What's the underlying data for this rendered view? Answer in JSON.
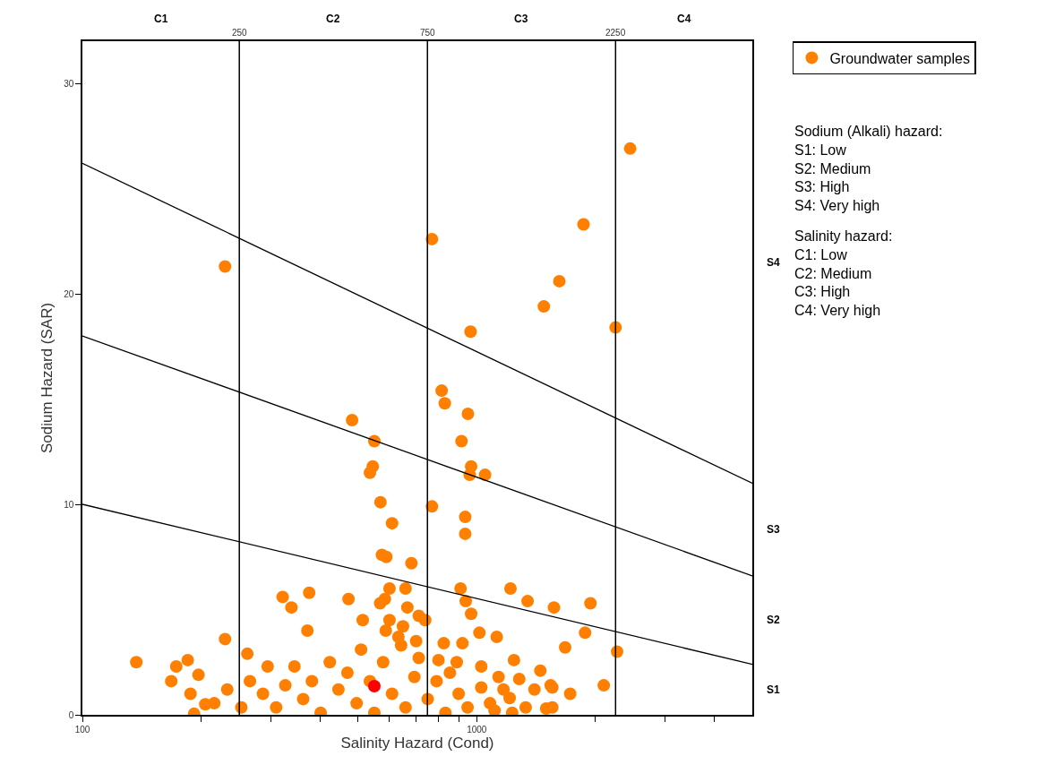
{
  "chart_data": {
    "type": "scatter",
    "xlabel": "Salinity Hazard (Cond)",
    "ylabel": "Sodium Hazard (SAR)",
    "log": "x",
    "xlim": [
      100,
      5000
    ],
    "ylim": [
      0,
      32
    ],
    "xticks": [
      100,
      {
        "value": 200,
        "label": null
      },
      {
        "value": 300,
        "label": null
      },
      {
        "value": 400,
        "label": null
      },
      {
        "value": 500,
        "label": null
      },
      {
        "value": 600,
        "label": null
      },
      {
        "value": 700,
        "label": null
      },
      {
        "value": 800,
        "label": null
      },
      {
        "value": 900,
        "label": null
      },
      1000,
      {
        "value": 2000,
        "label": null
      },
      {
        "value": 3000,
        "label": null
      },
      {
        "value": 4000,
        "label": null
      }
    ],
    "yticks": [
      0,
      10,
      20,
      30
    ],
    "legend": "top right",
    "marker": "circle",
    "ref_lines": [
      {
        "axis": "x",
        "value": 250,
        "label": "250",
        "color": "#000000"
      },
      {
        "axis": "x",
        "value": 750,
        "label": "750",
        "color": "#000000"
      },
      {
        "axis": "x",
        "value": 2250,
        "label": "2250",
        "color": "#000000"
      }
    ],
    "series": [
      {
        "name": "Groundwater samples",
        "color": "#ff8000",
        "x": [
          2450,
          1866,
          770,
          230,
          1620,
          1480,
          2250,
          965,
          815,
          830,
          950,
          483,
          915,
          550,
          536,
          545,
          570,
          610,
          575,
          590,
          683,
          968,
          960,
          1050,
          770,
          935,
          935,
          473,
          601,
          660,
          569,
          585,
          514,
          667,
          713,
          740,
          601,
          588,
          650,
          633,
          702,
          910,
          938,
          968,
          1218,
          1346,
          1570,
          1943,
          1883,
          1676,
          1016,
          1124,
          825,
          920,
          1243,
          1136,
          1282,
          1450,
          1540,
          2100,
          1500,
          1212,
          1110,
          1027,
          890,
          800,
          2270,
          1555,
          137,
          173,
          185,
          168,
          197,
          188,
          230,
          322,
          339,
          376,
          372,
          192,
          205,
          262,
          216,
          233,
          253,
          266,
          287,
          295,
          310,
          327,
          345,
          363,
          382,
          402,
          424,
          446,
          470,
          496,
          509,
          536,
          550,
          579,
          610,
          643,
          660,
          695,
          713,
          751,
          791,
          833,
          855,
          900,
          948,
          1027,
          1081,
          1169,
          1230,
          1331,
          1401,
          1555,
          1726
        ],
        "values": [
          26.9,
          23.3,
          22.6,
          21.3,
          20.6,
          19.4,
          18.4,
          18.2,
          15.4,
          14.8,
          14.3,
          14.0,
          13.0,
          13.0,
          11.5,
          11.8,
          10.1,
          9.1,
          7.6,
          7.5,
          7.2,
          11.8,
          11.4,
          11.4,
          9.9,
          9.4,
          8.6,
          5.5,
          6.0,
          6.0,
          5.3,
          5.5,
          4.5,
          5.1,
          4.7,
          4.5,
          4.5,
          4.0,
          4.2,
          3.7,
          3.5,
          6.0,
          5.4,
          4.8,
          6.0,
          5.4,
          5.1,
          5.3,
          3.9,
          3.2,
          3.9,
          3.7,
          3.4,
          3.4,
          2.6,
          1.8,
          1.7,
          2.1,
          1.4,
          1.4,
          0.3,
          0.8,
          0.2,
          1.3,
          2.5,
          2.6,
          3.0,
          1.3,
          2.5,
          2.3,
          2.6,
          1.6,
          1.9,
          1.0,
          3.6,
          5.6,
          5.1,
          5.8,
          4.0,
          0.05,
          0.5,
          2.9,
          0.55,
          1.2,
          0.35,
          1.6,
          1.0,
          2.3,
          0.35,
          1.4,
          2.3,
          0.75,
          1.6,
          0.1,
          2.5,
          1.2,
          2.0,
          0.55,
          3.1,
          1.6,
          0.1,
          2.5,
          1.0,
          3.3,
          0.35,
          1.8,
          2.7,
          0.75,
          1.6,
          0.1,
          2.0,
          1.0,
          0.35,
          2.3,
          0.55,
          1.2,
          0.1,
          0.35,
          1.2,
          0.35,
          1.0
        ]
      },
      {
        "type": "scatter",
        "color": "#ff0000",
        "x": [
          550
        ],
        "values": [
          1.36
        ]
      },
      {
        "type": "line",
        "color": "#000000",
        "marker": "none",
        "x": [
          100,
          5000
        ],
        "values": [
          26.2,
          11.0
        ]
      },
      {
        "type": "line",
        "color": "#000000",
        "marker": "none",
        "x": [
          100,
          5000
        ],
        "values": [
          18.0,
          6.6
        ]
      },
      {
        "type": "line",
        "color": "#000000",
        "marker": "none",
        "x": [
          100,
          5000
        ],
        "values": [
          10.0,
          2.4
        ]
      }
    ],
    "annotations": [
      "C1",
      "C2",
      "C3",
      "C4",
      "S1",
      "S2",
      "S3",
      "S4",
      "Sodium (Alkali) hazard:\nS1: Low\nS2: Medium\nS3: High\nS4: Very high",
      "Salinity hazard:\nC1: Low\nC2: Medium\nC3: High\nC4: Very high"
    ]
  }
}
